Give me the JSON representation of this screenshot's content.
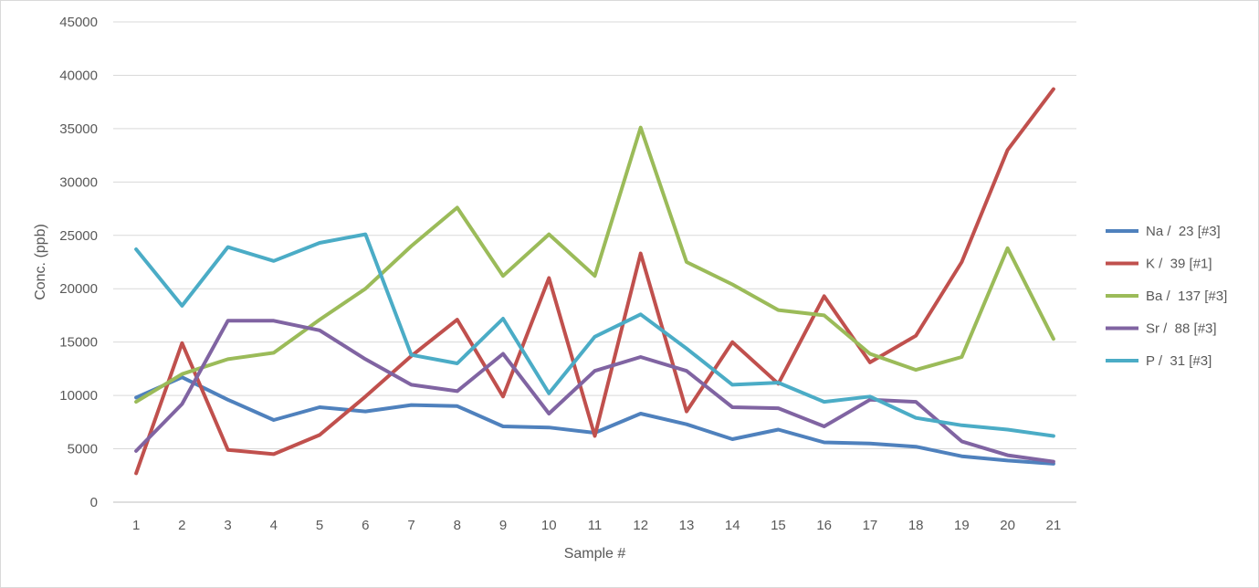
{
  "chart_data": {
    "type": "line",
    "title": "",
    "xlabel": "Sample #",
    "ylabel": "Conc. (ppb)",
    "ylim": [
      0,
      45000
    ],
    "yticks": [
      0,
      5000,
      10000,
      15000,
      20000,
      25000,
      30000,
      35000,
      40000,
      45000
    ],
    "ytick_labels": [
      "0",
      "5000",
      "10000",
      "15000",
      "20000",
      "25000",
      "30000",
      "35000",
      "40000",
      "45000"
    ],
    "categories": [
      "1",
      "2",
      "3",
      "4",
      "5",
      "6",
      "7",
      "8",
      "9",
      "10",
      "11",
      "12",
      "13",
      "14",
      "15",
      "16",
      "17",
      "18",
      "19",
      "20",
      "21"
    ],
    "grid": "horizontal",
    "legend_position": "right",
    "series": [
      {
        "name": "Na /  23 [#3]",
        "color": "#4f81bd",
        "values": [
          9800,
          11700,
          9600,
          7700,
          8900,
          8500,
          9100,
          9000,
          7100,
          7000,
          6500,
          8300,
          7300,
          5900,
          6800,
          5600,
          5500,
          5200,
          4300,
          3900,
          3600
        ]
      },
      {
        "name": "K /  39 [#1]",
        "color": "#c0504d",
        "values": [
          2700,
          14900,
          4900,
          4500,
          6300,
          9900,
          13700,
          17100,
          9900,
          21000,
          6200,
          23300,
          8500,
          15000,
          11100,
          19300,
          13100,
          15600,
          22500,
          33000,
          38700
        ]
      },
      {
        "name": "Ba /  137 [#3]",
        "color": "#9bbb59",
        "values": [
          9400,
          12000,
          13400,
          14000,
          17100,
          20000,
          24000,
          27600,
          21200,
          25100,
          21200,
          35100,
          22500,
          20400,
          18000,
          17500,
          13900,
          12400,
          13600,
          23800,
          15300
        ]
      },
      {
        "name": "Sr /  88 [#3]",
        "color": "#8064a2",
        "values": [
          4800,
          9200,
          17000,
          17000,
          16100,
          13400,
          11000,
          10400,
          13900,
          8300,
          12300,
          13600,
          12300,
          8900,
          8800,
          7100,
          9600,
          9400,
          5700,
          4400,
          3800
        ]
      },
      {
        "name": "P /  31 [#3]",
        "color": "#4bacc6",
        "values": [
          23700,
          18400,
          23900,
          22600,
          24300,
          25100,
          13800,
          13000,
          17200,
          10200,
          15500,
          17600,
          14400,
          11000,
          11200,
          9400,
          9900,
          7900,
          7200,
          6800,
          6200
        ]
      }
    ]
  }
}
